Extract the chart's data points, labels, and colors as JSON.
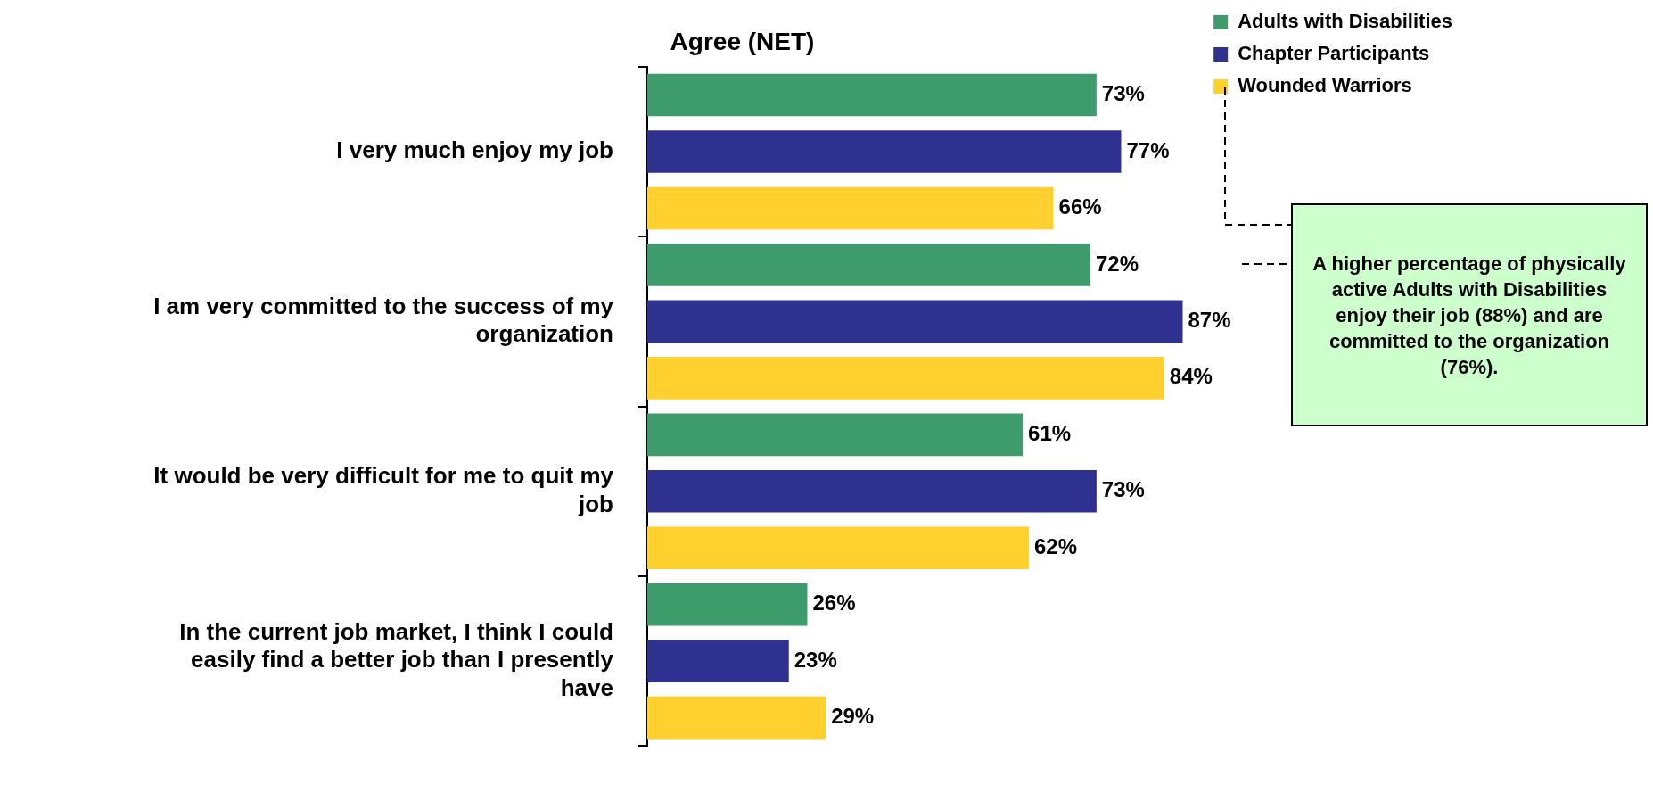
{
  "chart_data": {
    "type": "bar",
    "orientation": "horizontal",
    "title": "Agree (NET)",
    "categories": [
      "I very much enjoy my job",
      "I am very committed to the success of my organization",
      "It would be very difficult for me to quit my job",
      "In the current job market, I think I could easily find a better job than I presently have"
    ],
    "series": [
      {
        "name": "Adults with Disabilities",
        "color": "#3d9b6c",
        "values": [
          73,
          72,
          61,
          26
        ],
        "value_labels": [
          "73%",
          "72%",
          "61%",
          "26%"
        ]
      },
      {
        "name": "Chapter Participants",
        "color": "#2e318f",
        "values": [
          77,
          87,
          73,
          23
        ],
        "value_labels": [
          "77%",
          "87%",
          "73%",
          "23%"
        ]
      },
      {
        "name": "Wounded Warriors",
        "color": "#ffd02e",
        "values": [
          66,
          84,
          62,
          29
        ],
        "value_labels": [
          "66%",
          "84%",
          "62%",
          "29%"
        ]
      }
    ],
    "legend": "top right",
    "annotations": [
      "A higher percentage of physically active Adults with Disabilities enjoy their job (88%) and are committed to the organization (76%)."
    ]
  }
}
